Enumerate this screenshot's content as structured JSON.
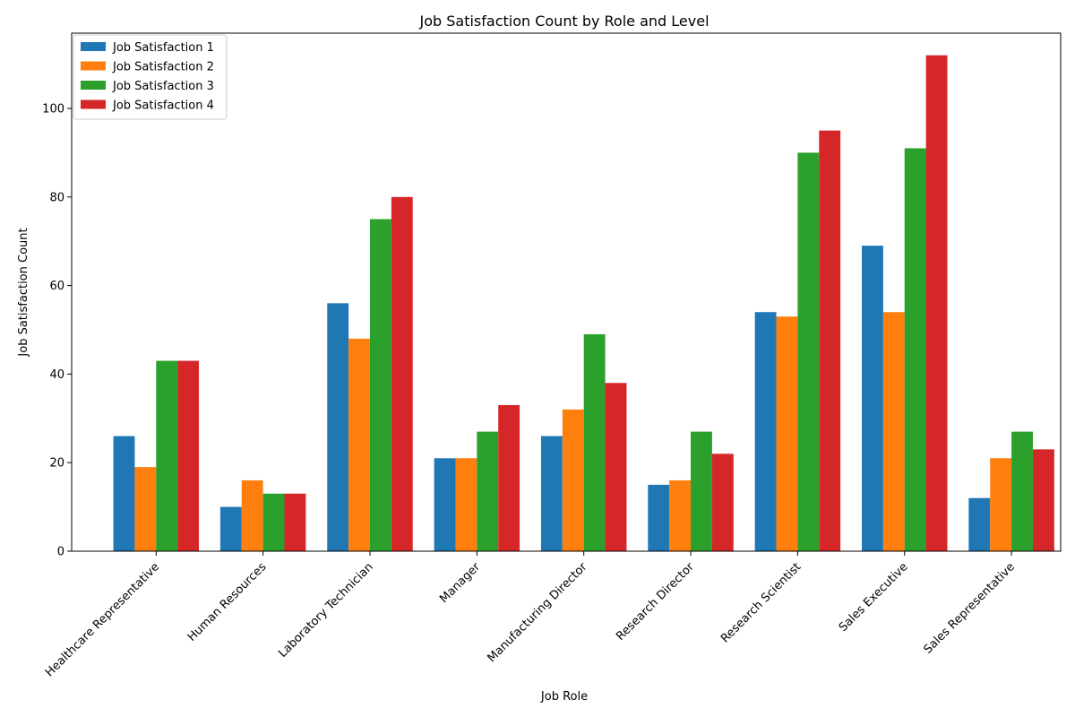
{
  "chart_data": {
    "type": "bar",
    "title": "Job Satisfaction Count by Role and Level",
    "xlabel": "Job Role",
    "ylabel": "Job Satisfaction Count",
    "ylim": [
      0,
      117
    ],
    "yticks": [
      0,
      20,
      40,
      60,
      80,
      100
    ],
    "legend_position": "top-left",
    "grid": false,
    "categories": [
      "Healthcare Representative",
      "Human Resources",
      "Laboratory Technician",
      "Manager",
      "Manufacturing Director",
      "Research Director",
      "Research Scientist",
      "Sales Executive",
      "Sales Representative"
    ],
    "series": [
      {
        "name": "Job Satisfaction 1",
        "color": "#1f77b4",
        "values": [
          26,
          10,
          56,
          21,
          26,
          15,
          54,
          69,
          12
        ]
      },
      {
        "name": "Job Satisfaction 2",
        "color": "#ff7f0e",
        "values": [
          19,
          16,
          48,
          21,
          32,
          16,
          53,
          54,
          21
        ]
      },
      {
        "name": "Job Satisfaction 3",
        "color": "#2ca02c",
        "values": [
          43,
          13,
          75,
          27,
          49,
          27,
          90,
          91,
          27
        ]
      },
      {
        "name": "Job Satisfaction 4",
        "color": "#d62728",
        "values": [
          43,
          13,
          80,
          33,
          38,
          22,
          95,
          112,
          23
        ]
      }
    ]
  }
}
